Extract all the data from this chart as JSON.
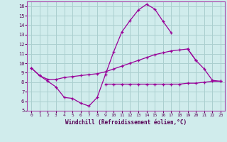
{
  "xlabel": "Windchill (Refroidissement éolien,°C)",
  "background_color": "#d0ecec",
  "grid_color": "#aacfcf",
  "line_color": "#990099",
  "x_hours": [
    0,
    1,
    2,
    3,
    4,
    5,
    6,
    7,
    8,
    9,
    10,
    11,
    12,
    13,
    14,
    15,
    16,
    17,
    18,
    19,
    20,
    21,
    22,
    23
  ],
  "series1": [
    9.5,
    8.7,
    8.1,
    7.5,
    6.4,
    6.3,
    5.8,
    5.5,
    6.4,
    8.8,
    11.2,
    13.3,
    14.5,
    15.6,
    16.2,
    15.7,
    14.4,
    13.2,
    null,
    null,
    null,
    null,
    null,
    null
  ],
  "series2": [
    null,
    null,
    null,
    null,
    null,
    null,
    null,
    null,
    null,
    null,
    null,
    null,
    null,
    null,
    null,
    null,
    null,
    null,
    null,
    11.5,
    10.3,
    9.4,
    8.2,
    8.1
  ],
  "series3": [
    9.5,
    8.7,
    8.3,
    8.3,
    8.5,
    8.6,
    8.7,
    8.8,
    8.9,
    9.1,
    9.4,
    9.7,
    10.0,
    10.3,
    10.6,
    10.9,
    11.1,
    11.3,
    11.4,
    11.5,
    10.3,
    null,
    null,
    null
  ],
  "series4": [
    null,
    null,
    null,
    null,
    null,
    null,
    null,
    null,
    null,
    7.8,
    7.8,
    7.8,
    7.8,
    7.8,
    7.8,
    7.8,
    7.8,
    7.8,
    7.8,
    7.9,
    7.9,
    8.0,
    8.1,
    8.1
  ],
  "ylim": [
    5,
    16.5
  ],
  "yticks": [
    5,
    6,
    7,
    8,
    9,
    10,
    11,
    12,
    13,
    14,
    15,
    16
  ],
  "xticks": [
    0,
    1,
    2,
    3,
    4,
    5,
    6,
    7,
    8,
    9,
    10,
    11,
    12,
    13,
    14,
    15,
    16,
    17,
    18,
    19,
    20,
    21,
    22,
    23
  ]
}
